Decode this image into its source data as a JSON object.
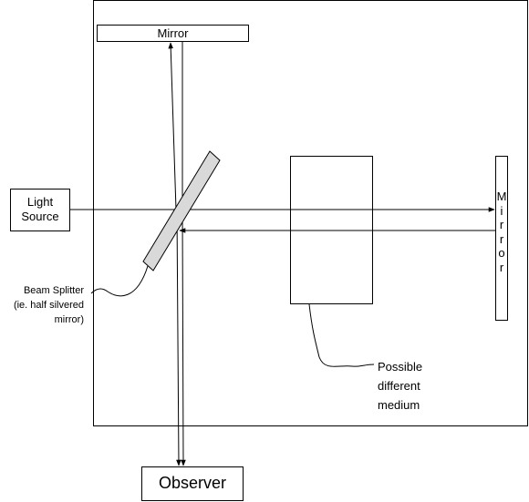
{
  "labels": {
    "top_mirror": "Mirror",
    "right_mirror": [
      "M",
      "i",
      "r",
      "r",
      "o",
      "r"
    ],
    "light_source": [
      "Light",
      "Source"
    ],
    "beam_splitter": [
      "Beam Splitter",
      "(ie. half silvered",
      "mirror)"
    ],
    "medium": [
      "Possible",
      "different",
      "medium"
    ],
    "observer": "Observer"
  },
  "colors": {
    "stroke": "#000000",
    "splitter_fill": "#d9d9d9",
    "background": "#ffffff"
  }
}
